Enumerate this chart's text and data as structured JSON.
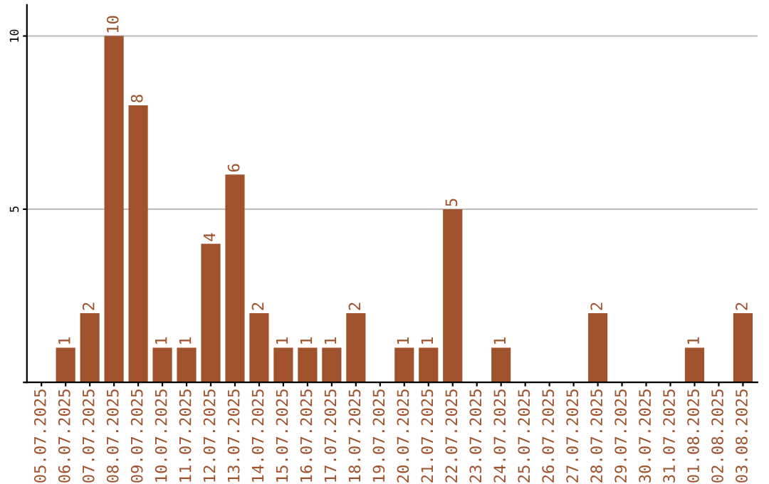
{
  "chart_data": {
    "type": "bar",
    "categories": [
      "05.07.2025",
      "06.07.2025",
      "07.07.2025",
      "08.07.2025",
      "09.07.2025",
      "10.07.2025",
      "11.07.2025",
      "12.07.2025",
      "13.07.2025",
      "14.07.2025",
      "15.07.2025",
      "16.07.2025",
      "17.07.2025",
      "18.07.2025",
      "19.07.2025",
      "20.07.2025",
      "21.07.2025",
      "22.07.2025",
      "23.07.2025",
      "24.07.2025",
      "25.07.2025",
      "26.07.2025",
      "27.07.2025",
      "28.07.2025",
      "29.07.2025",
      "30.07.2025",
      "31.07.2025",
      "01.08.2025",
      "02.08.2025",
      "03.08.2025"
    ],
    "values": [
      0,
      1,
      2,
      10,
      8,
      1,
      1,
      4,
      6,
      2,
      1,
      1,
      1,
      2,
      0,
      1,
      1,
      5,
      0,
      1,
      0,
      0,
      0,
      2,
      0,
      0,
      0,
      1,
      0,
      2
    ],
    "value_labels": [
      null,
      "1",
      "2",
      "10",
      "8",
      "1",
      "1",
      "4",
      "6",
      "2",
      "1",
      "1",
      "1",
      "2",
      null,
      "1",
      "1",
      "5",
      null,
      "1",
      null,
      null,
      null,
      "2",
      null,
      null,
      null,
      "1",
      null,
      "2"
    ],
    "color": "#a0522d",
    "ylim": [
      0,
      10.9
    ],
    "yticks": [
      {
        "value": 0,
        "label": null
      },
      5,
      10
    ],
    "grid": "y"
  }
}
